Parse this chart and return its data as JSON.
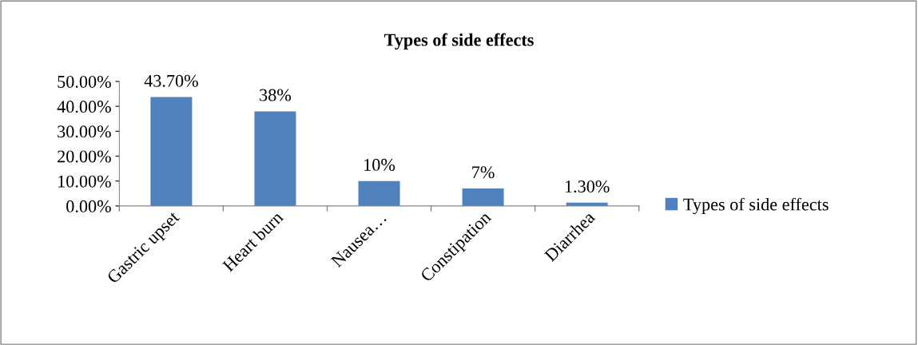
{
  "chart_data": {
    "type": "bar",
    "title": "Types of side effects",
    "categories": [
      "Gastric upset",
      "Heart burn",
      "Nausea…",
      "Constipation",
      "Diarrhea"
    ],
    "series": [
      {
        "name": "Types of side effects",
        "color": "#4f81bd",
        "values": [
          43.7,
          38,
          10,
          7,
          1.3
        ],
        "value_labels": [
          "43.70%",
          "38%",
          "10%",
          "7%",
          "1.30%"
        ]
      }
    ],
    "ylim": [
      0,
      50
    ],
    "yticks": [
      {
        "value": 0,
        "label": "0.00%"
      },
      {
        "value": 10,
        "label": "10.00%"
      },
      {
        "value": 20,
        "label": "20.00%"
      },
      {
        "value": 30,
        "label": "30.00%"
      },
      {
        "value": 40,
        "label": "40.00%"
      },
      {
        "value": 50,
        "label": "50.00%"
      }
    ],
    "grid": false,
    "legend": "right"
  }
}
